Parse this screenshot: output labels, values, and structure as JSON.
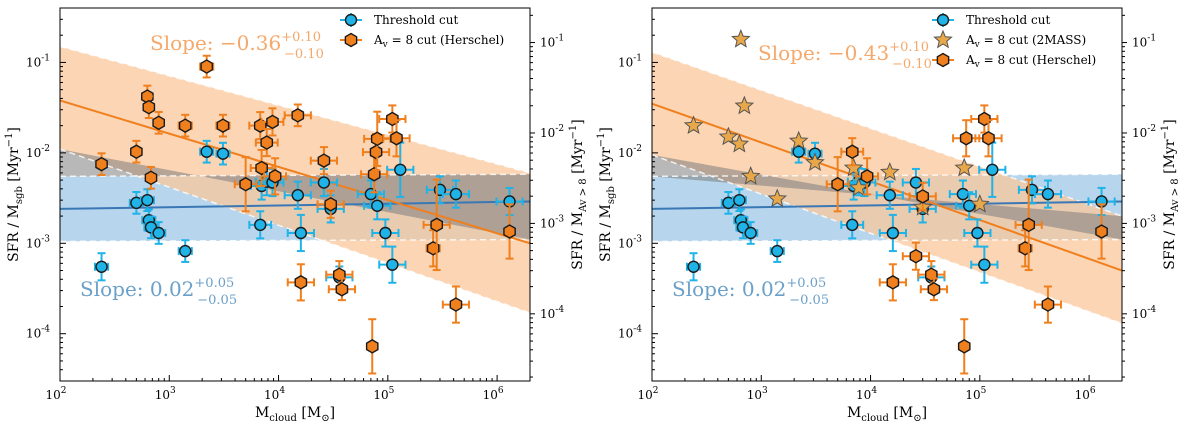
{
  "colors": {
    "blue": "#1fb3e8",
    "blue_line": "#3a78b5",
    "blue_band": "#9fc7e6",
    "orange": "#f07f1d",
    "orange_band": "#f9c79b",
    "gray": "#7d7d7d",
    "star": "#e8a84a"
  },
  "chart_data": [
    {
      "type": "scatter",
      "xlabel": "M_cloud [M_⊙]",
      "ylabel": "SFR / M_sgb [Myr⁻¹]",
      "ylabel_right": "SFR / M_Av>8 [Myr⁻¹]",
      "x_scale": "log",
      "y_scale": "log",
      "xlim": [
        100,
        2000000
      ],
      "ylim": [
        3e-05,
        0.4
      ],
      "x_ticks": [
        "10^2",
        "10^3",
        "10^4",
        "10^5",
        "10^6"
      ],
      "y_ticks_left": [
        "10^-4",
        "10^-3",
        "10^-2",
        "10^-1"
      ],
      "y_ticks_right": [
        "10^-4",
        "10^-3",
        "10^-2",
        "10^-1"
      ],
      "legend_position": "top-right",
      "annotations": [
        {
          "text": "Slope: −0.36",
          "sup": "+0.10",
          "sub": "−0.10",
          "color": "orange"
        },
        {
          "text": "Slope: 0.02",
          "sup": "+0.05",
          "sub": "−0.05",
          "color": "blue"
        }
      ],
      "fits": {
        "blue": {
          "x": [
            100,
            2000000
          ],
          "y": [
            0.0024,
            0.0029
          ],
          "band_lower": [
            0.00105,
            0.0011
          ],
          "band_upper": [
            0.0055,
            0.0058
          ]
        },
        "orange": {
          "x": [
            100,
            2000000
          ],
          "y": [
            0.038,
            0.001
          ],
          "band_lower": [
            0.011,
            0.00017
          ],
          "band_upper": [
            0.15,
            0.006
          ]
        }
      },
      "series": [
        {
          "name": "Threshold cut",
          "marker": "circle",
          "points": [
            {
              "x": 240,
              "y": 0.00055,
              "xerr": 0.06,
              "yerr": 0.15
            },
            {
              "x": 500,
              "y": 0.0028,
              "xerr": 0.06,
              "yerr": 0.12
            },
            {
              "x": 630,
              "y": 0.003,
              "xerr": 0.06,
              "yerr": 0.12
            },
            {
              "x": 650,
              "y": 0.0018,
              "xerr": 0.06,
              "yerr": 0.12
            },
            {
              "x": 680,
              "y": 0.0015,
              "xerr": 0.06,
              "yerr": 0.12
            },
            {
              "x": 800,
              "y": 0.0013,
              "xerr": 0.06,
              "yerr": 0.12
            },
            {
              "x": 1400,
              "y": 0.00082,
              "xerr": 0.06,
              "yerr": 0.12
            },
            {
              "x": 2200,
              "y": 0.0103,
              "xerr": 0.06,
              "yerr": 0.12
            },
            {
              "x": 3100,
              "y": 0.0098,
              "xerr": 0.06,
              "yerr": 0.12
            },
            {
              "x": 6800,
              "y": 0.0016,
              "xerr": 0.1,
              "yerr": 0.15
            },
            {
              "x": 7000,
              "y": 0.0043,
              "xerr": 0.1,
              "yerr": 0.15
            },
            {
              "x": 7800,
              "y": 0.0048,
              "xerr": 0.1,
              "yerr": 0.15
            },
            {
              "x": 8800,
              "y": 0.0047,
              "xerr": 0.1,
              "yerr": 0.15
            },
            {
              "x": 15000,
              "y": 0.0034,
              "xerr": 0.12,
              "yerr": 0.15
            },
            {
              "x": 16000,
              "y": 0.0013,
              "xerr": 0.12,
              "yerr": 0.2
            },
            {
              "x": 26000,
              "y": 0.0047,
              "xerr": 0.12,
              "yerr": 0.15
            },
            {
              "x": 30000,
              "y": 0.0024,
              "xerr": 0.12,
              "yerr": 0.15
            },
            {
              "x": 36000,
              "y": 0.00042,
              "xerr": 0.12,
              "yerr": 0.12
            },
            {
              "x": 70000,
              "y": 0.0035,
              "xerr": 0.12,
              "yerr": 0.15
            },
            {
              "x": 80000,
              "y": 0.0026,
              "xerr": 0.12,
              "yerr": 0.15
            },
            {
              "x": 95000,
              "y": 0.0013,
              "xerr": 0.12,
              "yerr": 0.15
            },
            {
              "x": 110000,
              "y": 0.00058,
              "xerr": 0.12,
              "yerr": 0.2
            },
            {
              "x": 130000,
              "y": 0.0065,
              "xerr": 0.12,
              "yerr": 0.3
            },
            {
              "x": 300000,
              "y": 0.0039,
              "xerr": 0.12,
              "yerr": 0.15
            },
            {
              "x": 420000,
              "y": 0.0035,
              "xerr": 0.12,
              "yerr": 0.15
            },
            {
              "x": 1300000,
              "y": 0.0029,
              "xerr": 0.12,
              "yerr": 0.15
            }
          ]
        },
        {
          "name": "A_v = 8 cut (Herschel)",
          "marker": "hexagon",
          "points": [
            {
              "x": 240,
              "y": 0.0075,
              "xerr": 0.0,
              "yerr": 0.12
            },
            {
              "x": 500,
              "y": 0.0103,
              "xerr": 0.0,
              "yerr": 0.12
            },
            {
              "x": 630,
              "y": 0.042,
              "xerr": 0.0,
              "yerr": 0.12
            },
            {
              "x": 650,
              "y": 0.032,
              "xerr": 0.0,
              "yerr": 0.12
            },
            {
              "x": 680,
              "y": 0.0053,
              "xerr": 0.0,
              "yerr": 0.12
            },
            {
              "x": 800,
              "y": 0.0215,
              "xerr": 0.0,
              "yerr": 0.12
            },
            {
              "x": 1400,
              "y": 0.02,
              "xerr": 0.06,
              "yerr": 0.12
            },
            {
              "x": 2200,
              "y": 0.09,
              "xerr": 0.06,
              "yerr": 0.12
            },
            {
              "x": 3100,
              "y": 0.02,
              "xerr": 0.06,
              "yerr": 0.12
            },
            {
              "x": 5000,
              "y": 0.0045,
              "xerr": 0.1,
              "yerr": 0.3
            },
            {
              "x": 6800,
              "y": 0.02,
              "xerr": 0.1,
              "yerr": 0.15
            },
            {
              "x": 7000,
              "y": 0.0068,
              "xerr": 0.1,
              "yerr": 0.2
            },
            {
              "x": 7800,
              "y": 0.013,
              "xerr": 0.1,
              "yerr": 0.15
            },
            {
              "x": 8800,
              "y": 0.022,
              "xerr": 0.1,
              "yerr": 0.15
            },
            {
              "x": 9300,
              "y": 0.0055,
              "xerr": 0.1,
              "yerr": 0.2
            },
            {
              "x": 15000,
              "y": 0.026,
              "xerr": 0.12,
              "yerr": 0.12
            },
            {
              "x": 16000,
              "y": 0.00037,
              "xerr": 0.12,
              "yerr": 0.2
            },
            {
              "x": 26000,
              "y": 0.0082,
              "xerr": 0.12,
              "yerr": 0.15
            },
            {
              "x": 30000,
              "y": 0.0027,
              "xerr": 0.12,
              "yerr": 0.15
            },
            {
              "x": 36000,
              "y": 0.00045,
              "xerr": 0.12,
              "yerr": 0.15
            },
            {
              "x": 38000,
              "y": 0.00031,
              "xerr": 0.12,
              "yerr": 0.12
            },
            {
              "x": 72000,
              "y": 7.25e-05,
              "xerr": 0.0,
              "yerr": 0.3
            },
            {
              "x": 75000,
              "y": 0.0058,
              "xerr": 0.12,
              "yerr": 0.2
            },
            {
              "x": 78000,
              "y": 0.0102,
              "xerr": 0.12,
              "yerr": 0.2
            },
            {
              "x": 80000,
              "y": 0.0143,
              "xerr": 0.12,
              "yerr": 0.3
            },
            {
              "x": 110000,
              "y": 0.0237,
              "xerr": 0.12,
              "yerr": 0.15
            },
            {
              "x": 120000,
              "y": 0.0145,
              "xerr": 0.12,
              "yerr": 0.2
            },
            {
              "x": 260000,
              "y": 0.00088,
              "xerr": 0.06,
              "yerr": 0.2
            },
            {
              "x": 280000,
              "y": 0.0016,
              "xerr": 0.12,
              "yerr": 0.5
            },
            {
              "x": 420000,
              "y": 0.00021,
              "xerr": 0.12,
              "yerr": 0.2
            },
            {
              "x": 1300000,
              "y": 0.00135,
              "xerr": 0.0,
              "yerr": 0.3
            }
          ]
        }
      ]
    },
    {
      "type": "scatter",
      "xlabel": "M_cloud [M_⊙]",
      "ylabel": "SFR / M_sgb [Myr⁻¹]",
      "ylabel_right": "SFR / M_Av>8 [Myr⁻¹]",
      "x_scale": "log",
      "y_scale": "log",
      "xlim": [
        100,
        2000000
      ],
      "ylim": [
        3e-05,
        0.4
      ],
      "x_ticks": [
        "10^2",
        "10^3",
        "10^4",
        "10^5",
        "10^6"
      ],
      "y_ticks_left": [
        "10^-4",
        "10^-3",
        "10^-2",
        "10^-1"
      ],
      "y_ticks_right": [
        "10^-4",
        "10^-3",
        "10^-2",
        "10^-1"
      ],
      "legend_position": "top-right",
      "annotations": [
        {
          "text": "Slope: −0.43",
          "sup": "+0.10",
          "sub": "−0.10",
          "color": "orange"
        },
        {
          "text": "Slope: 0.02",
          "sup": "+0.05",
          "sub": "−0.05",
          "color": "blue"
        }
      ],
      "fits": {
        "blue": {
          "x": [
            100,
            2000000
          ],
          "y": [
            0.0024,
            0.0029
          ],
          "band_lower": [
            0.00105,
            0.0011
          ],
          "band_upper": [
            0.0055,
            0.0058
          ]
        },
        "orange": {
          "x": [
            100,
            2000000
          ],
          "y": [
            0.035,
            0.0005
          ],
          "band_lower": [
            0.0095,
            0.00013
          ],
          "band_upper": [
            0.13,
            0.002
          ]
        }
      },
      "series": [
        {
          "name": "Threshold cut",
          "marker": "circle",
          "points": [
            {
              "x": 240,
              "y": 0.00055,
              "xerr": 0.06,
              "yerr": 0.15
            },
            {
              "x": 500,
              "y": 0.0028,
              "xerr": 0.06,
              "yerr": 0.12
            },
            {
              "x": 630,
              "y": 0.003,
              "xerr": 0.06,
              "yerr": 0.12
            },
            {
              "x": 650,
              "y": 0.0018,
              "xerr": 0.06,
              "yerr": 0.12
            },
            {
              "x": 680,
              "y": 0.0015,
              "xerr": 0.06,
              "yerr": 0.12
            },
            {
              "x": 800,
              "y": 0.0013,
              "xerr": 0.06,
              "yerr": 0.12
            },
            {
              "x": 1400,
              "y": 0.00082,
              "xerr": 0.06,
              "yerr": 0.12
            },
            {
              "x": 2200,
              "y": 0.0103,
              "xerr": 0.06,
              "yerr": 0.12
            },
            {
              "x": 3100,
              "y": 0.0098,
              "xerr": 0.06,
              "yerr": 0.12
            },
            {
              "x": 6800,
              "y": 0.0016,
              "xerr": 0.1,
              "yerr": 0.15
            },
            {
              "x": 7000,
              "y": 0.0043,
              "xerr": 0.1,
              "yerr": 0.15
            },
            {
              "x": 7800,
              "y": 0.0048,
              "xerr": 0.1,
              "yerr": 0.15
            },
            {
              "x": 8800,
              "y": 0.0047,
              "xerr": 0.1,
              "yerr": 0.15
            },
            {
              "x": 15000,
              "y": 0.0034,
              "xerr": 0.12,
              "yerr": 0.15
            },
            {
              "x": 16000,
              "y": 0.0013,
              "xerr": 0.12,
              "yerr": 0.2
            },
            {
              "x": 26000,
              "y": 0.0047,
              "xerr": 0.12,
              "yerr": 0.15
            },
            {
              "x": 30000,
              "y": 0.0024,
              "xerr": 0.12,
              "yerr": 0.15
            },
            {
              "x": 36000,
              "y": 0.00042,
              "xerr": 0.12,
              "yerr": 0.12
            },
            {
              "x": 70000,
              "y": 0.0035,
              "xerr": 0.12,
              "yerr": 0.15
            },
            {
              "x": 80000,
              "y": 0.0026,
              "xerr": 0.12,
              "yerr": 0.15
            },
            {
              "x": 95000,
              "y": 0.0013,
              "xerr": 0.12,
              "yerr": 0.15
            },
            {
              "x": 110000,
              "y": 0.00058,
              "xerr": 0.12,
              "yerr": 0.2
            },
            {
              "x": 130000,
              "y": 0.0065,
              "xerr": 0.12,
              "yerr": 0.3
            },
            {
              "x": 300000,
              "y": 0.0039,
              "xerr": 0.12,
              "yerr": 0.15
            },
            {
              "x": 420000,
              "y": 0.0035,
              "xerr": 0.12,
              "yerr": 0.15
            },
            {
              "x": 1300000,
              "y": 0.0029,
              "xerr": 0.12,
              "yerr": 0.15
            }
          ]
        },
        {
          "name": "A_v = 8 cut (2MASS)",
          "marker": "star",
          "points": [
            {
              "x": 240,
              "y": 0.02,
              "xerr": 0,
              "yerr": 0
            },
            {
              "x": 500,
              "y": 0.015,
              "xerr": 0,
              "yerr": 0
            },
            {
              "x": 630,
              "y": 0.0125,
              "xerr": 0,
              "yerr": 0
            },
            {
              "x": 650,
              "y": 0.18,
              "xerr": 0,
              "yerr": 0
            },
            {
              "x": 700,
              "y": 0.033,
              "xerr": 0,
              "yerr": 0
            },
            {
              "x": 800,
              "y": 0.0055,
              "xerr": 0,
              "yerr": 0
            },
            {
              "x": 1400,
              "y": 0.0031,
              "xerr": 0,
              "yerr": 0
            },
            {
              "x": 2200,
              "y": 0.0135,
              "xerr": 0,
              "yerr": 0
            },
            {
              "x": 3100,
              "y": 0.0078,
              "xerr": 0,
              "yerr": 0
            },
            {
              "x": 7000,
              "y": 0.0068,
              "xerr": 0,
              "yerr": 0
            },
            {
              "x": 7800,
              "y": 0.0041,
              "xerr": 0,
              "yerr": 0
            },
            {
              "x": 15000,
              "y": 0.0061,
              "xerr": 0,
              "yerr": 0
            },
            {
              "x": 30000,
              "y": 0.0025,
              "xerr": 0,
              "yerr": 0
            },
            {
              "x": 72000,
              "y": 0.0068,
              "xerr": 0,
              "yerr": 0
            },
            {
              "x": 100000,
              "y": 0.0027,
              "xerr": 0,
              "yerr": 0
            }
          ]
        },
        {
          "name": "A_v = 8 cut (Herschel)",
          "marker": "hexagon",
          "points": [
            {
              "x": 5000,
              "y": 0.0045,
              "xerr": 0.1,
              "yerr": 0.3
            },
            {
              "x": 6800,
              "y": 0.0103,
              "xerr": 0.1,
              "yerr": 0.15
            },
            {
              "x": 9300,
              "y": 0.0055,
              "xerr": 0.1,
              "yerr": 0.2
            },
            {
              "x": 16000,
              "y": 0.00037,
              "xerr": 0.12,
              "yerr": 0.2
            },
            {
              "x": 26000,
              "y": 0.00072,
              "xerr": 0.12,
              "yerr": 0.15
            },
            {
              "x": 30000,
              "y": 0.0033,
              "xerr": 0.12,
              "yerr": 0.15
            },
            {
              "x": 36000,
              "y": 0.00045,
              "xerr": 0.12,
              "yerr": 0.15
            },
            {
              "x": 38000,
              "y": 0.00031,
              "xerr": 0.12,
              "yerr": 0.12
            },
            {
              "x": 72000,
              "y": 7.25e-05,
              "xerr": 0.0,
              "yerr": 0.3
            },
            {
              "x": 75000,
              "y": 0.0145,
              "xerr": 0.12,
              "yerr": 0.2
            },
            {
              "x": 110000,
              "y": 0.0237,
              "xerr": 0.12,
              "yerr": 0.15
            },
            {
              "x": 120000,
              "y": 0.0145,
              "xerr": 0.12,
              "yerr": 0.2
            },
            {
              "x": 260000,
              "y": 0.00088,
              "xerr": 0.06,
              "yerr": 0.2
            },
            {
              "x": 280000,
              "y": 0.0016,
              "xerr": 0.12,
              "yerr": 0.5
            },
            {
              "x": 420000,
              "y": 0.00021,
              "xerr": 0.12,
              "yerr": 0.2
            },
            {
              "x": 1300000,
              "y": 0.00135,
              "xerr": 0.0,
              "yerr": 0.3
            }
          ]
        }
      ]
    }
  ]
}
